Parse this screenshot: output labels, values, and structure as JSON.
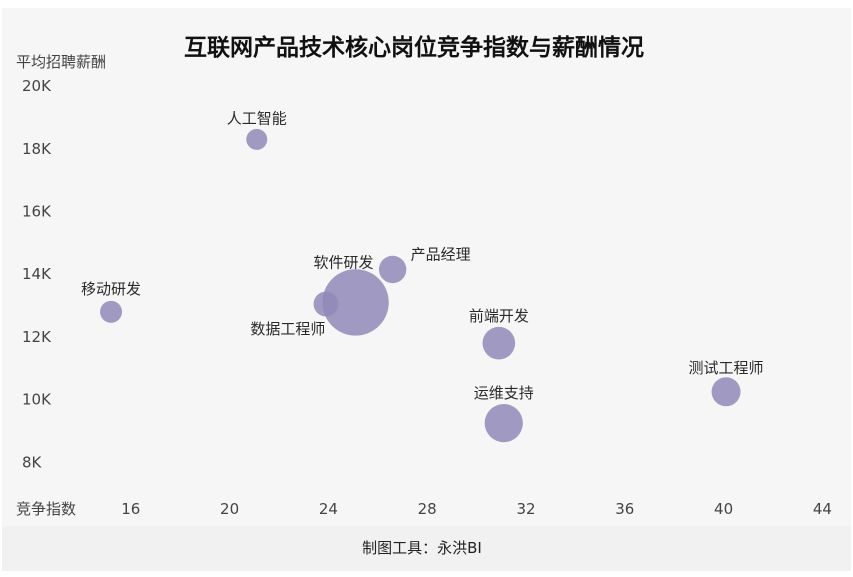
{
  "footer": {
    "text": "制图工具：永洪BI"
  },
  "chart_data": {
    "type": "scatter",
    "title": "互联网产品技术核心岗位竞争指数与薪酬情况",
    "xlabel": "竞争指数",
    "ylabel": "平均招聘薪酬",
    "xlim": [
      12,
      44
    ],
    "ylim": [
      6000,
      20000
    ],
    "x_ticks": [
      16,
      20,
      24,
      28,
      32,
      36,
      40,
      44
    ],
    "y_ticks": [
      8000,
      10000,
      12000,
      14000,
      16000,
      18000,
      20000
    ],
    "y_tick_labels": [
      "8K",
      "10K",
      "12K",
      "14K",
      "16K",
      "18K",
      "20K"
    ],
    "grid": false,
    "bubble_color": "#9088b8",
    "points": [
      {
        "label": "人工智能",
        "x": 21.1,
        "y": 18300,
        "size": 1
      },
      {
        "label": "移动研发",
        "x": 15.2,
        "y": 12800,
        "size": 1.1
      },
      {
        "label": "软件研发",
        "x": 25.1,
        "y": 13100,
        "size": 10
      },
      {
        "label": "数据工程师",
        "x": 23.9,
        "y": 13050,
        "size": 1.4
      },
      {
        "label": "产品经理",
        "x": 26.6,
        "y": 14150,
        "size": 1.7
      },
      {
        "label": "前端开发",
        "x": 30.9,
        "y": 11800,
        "size": 2.4
      },
      {
        "label": "运维支持",
        "x": 31.1,
        "y": 9250,
        "size": 3.3
      },
      {
        "label": "测试工程师",
        "x": 40.1,
        "y": 10250,
        "size": 1.9
      }
    ]
  }
}
